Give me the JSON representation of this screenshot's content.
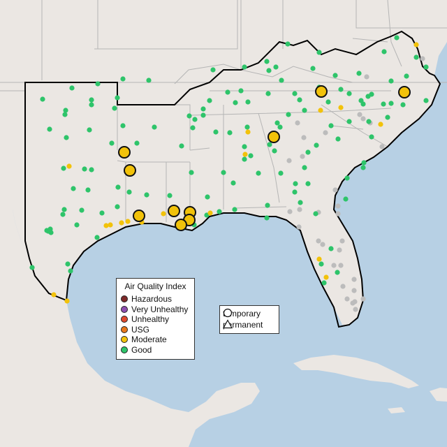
{
  "legend": {
    "title": "Air Quality Index",
    "categories": [
      {
        "label": "Hazardous",
        "color": "#7e2a2a"
      },
      {
        "label": "Very Unhealthy",
        "color": "#8e4fb0"
      },
      {
        "label": "Unhealthy",
        "color": "#e04a2e"
      },
      {
        "label": "USG",
        "color": "#e8781c"
      },
      {
        "label": "Moderate",
        "color": "#f2c20a"
      },
      {
        "label": "Good",
        "color": "#2ec46a"
      }
    ],
    "no_data_color": "#bcbcbc"
  },
  "monitor_types": [
    {
      "label": "temporary",
      "shape": "circle"
    },
    {
      "label": "permanent",
      "shape": "triangle"
    }
  ],
  "colors": {
    "water": "#b7d0e4",
    "land": "#ebe7e3",
    "state_border": "#b5b5b5",
    "region_outline": "#000000"
  },
  "temporary_monitors_moderate": [
    {
      "location": "Kentucky, central-east",
      "aqi_category": "Moderate"
    },
    {
      "location": "Virginia / North Carolina border",
      "aqi_category": "Moderate"
    },
    {
      "location": "Georgia, north",
      "aqi_category": "Moderate"
    },
    {
      "location": "Oklahoma / Arkansas border",
      "aqi_category": "Moderate"
    },
    {
      "location": "Arkansas / Louisiana north",
      "aqi_category": "Moderate"
    },
    {
      "location": "Louisiana / Texas border",
      "aqi_category": "Moderate"
    },
    {
      "location": "Louisiana, south central",
      "aqi_category": "Moderate"
    },
    {
      "location": "Louisiana, New Orleans area",
      "aqi_category": "Moderate"
    },
    {
      "location": "Louisiana, New Orleans area",
      "aqi_category": "Moderate"
    },
    {
      "location": "Louisiana, southeast",
      "aqi_category": "Moderate"
    }
  ]
}
